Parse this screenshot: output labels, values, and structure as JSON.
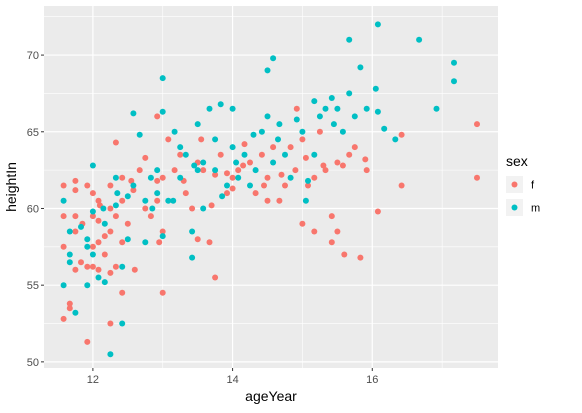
{
  "chart_data": {
    "type": "scatter",
    "title": "",
    "xlabel": "ageYear",
    "ylabel": "heightIn",
    "xlim": [
      11.3,
      17.8
    ],
    "ylim": [
      49.6,
      73.2
    ],
    "xticks": [
      12,
      14,
      16
    ],
    "yticks": [
      50,
      55,
      60,
      65,
      70
    ],
    "grid": true,
    "legend": {
      "title": "sex",
      "placement": "right",
      "entries": [
        {
          "key": "f",
          "label": "f",
          "color": "#F8766D"
        },
        {
          "key": "m",
          "label": "m",
          "color": "#00BFC4"
        }
      ]
    },
    "series": [
      {
        "name": "f",
        "color": "#F8766D",
        "points": [
          [
            11.58,
            61.5
          ],
          [
            11.58,
            59.5
          ],
          [
            11.58,
            57.5
          ],
          [
            11.58,
            52.8
          ],
          [
            11.67,
            53.5
          ],
          [
            11.67,
            53.8
          ],
          [
            11.75,
            61.8
          ],
          [
            11.75,
            61.2
          ],
          [
            11.75,
            59.5
          ],
          [
            11.75,
            58.5
          ],
          [
            11.75,
            56.0
          ],
          [
            11.83,
            56.5
          ],
          [
            11.92,
            61.5
          ],
          [
            11.92,
            56.2
          ],
          [
            11.92,
            51.3
          ],
          [
            12.0,
            61.0
          ],
          [
            12.0,
            59.5
          ],
          [
            12.0,
            57.5
          ],
          [
            12.0,
            56.2
          ],
          [
            12.08,
            60.5
          ],
          [
            12.08,
            59.2
          ],
          [
            12.08,
            57.8
          ],
          [
            12.08,
            56.0
          ],
          [
            12.17,
            58.2
          ],
          [
            12.17,
            57.0
          ],
          [
            12.25,
            61.5
          ],
          [
            12.25,
            60.0
          ],
          [
            12.25,
            58.5
          ],
          [
            12.25,
            55.8
          ],
          [
            12.25,
            52.5
          ],
          [
            12.33,
            64.3
          ],
          [
            12.33,
            59.5
          ],
          [
            12.33,
            56.2
          ],
          [
            12.42,
            62.0
          ],
          [
            12.42,
            60.5
          ],
          [
            12.42,
            57.8
          ],
          [
            12.42,
            54.5
          ],
          [
            12.5,
            59.0
          ],
          [
            12.58,
            61.2
          ],
          [
            12.67,
            62.5
          ],
          [
            12.75,
            63.3
          ],
          [
            12.75,
            60.0
          ],
          [
            12.83,
            59.5
          ],
          [
            12.92,
            66.0
          ],
          [
            12.92,
            61.8
          ],
          [
            12.92,
            60.5
          ],
          [
            13.0,
            62.0
          ],
          [
            13.0,
            58.5
          ],
          [
            13.0,
            54.5
          ],
          [
            13.08,
            64.5
          ],
          [
            13.17,
            62.5
          ],
          [
            13.25,
            63.5
          ],
          [
            13.33,
            61.0
          ],
          [
            13.42,
            60.0
          ],
          [
            13.5,
            63.0
          ],
          [
            13.5,
            58.0
          ],
          [
            13.58,
            62.5
          ],
          [
            13.67,
            57.8
          ],
          [
            13.75,
            55.5
          ],
          [
            13.75,
            62.2
          ],
          [
            13.83,
            63.5
          ],
          [
            13.92,
            62.3
          ],
          [
            13.92,
            61.0
          ],
          [
            14.0,
            62.0
          ],
          [
            14.0,
            61.3
          ],
          [
            14.08,
            62.5
          ],
          [
            14.17,
            64.2
          ],
          [
            14.25,
            63.0
          ],
          [
            14.33,
            61.0
          ],
          [
            14.42,
            63.5
          ],
          [
            14.5,
            62.0
          ],
          [
            14.5,
            60.5
          ],
          [
            14.58,
            64.0
          ],
          [
            14.67,
            60.5
          ],
          [
            14.75,
            61.5
          ],
          [
            14.83,
            64.0
          ],
          [
            14.92,
            66.5
          ],
          [
            15.0,
            64.5
          ],
          [
            15.0,
            59.0
          ],
          [
            15.08,
            61.5
          ],
          [
            15.17,
            62.0
          ],
          [
            15.17,
            58.5
          ],
          [
            15.25,
            65.0
          ],
          [
            15.33,
            62.5
          ],
          [
            15.42,
            59.5
          ],
          [
            15.42,
            57.8
          ],
          [
            15.5,
            63.0
          ],
          [
            15.5,
            58.5
          ],
          [
            15.58,
            62.8
          ],
          [
            15.67,
            63.5
          ],
          [
            15.75,
            64.0
          ],
          [
            15.83,
            56.8
          ],
          [
            15.92,
            62.5
          ],
          [
            16.08,
            59.8
          ],
          [
            16.42,
            64.8
          ],
          [
            16.42,
            61.5
          ],
          [
            17.5,
            65.5
          ],
          [
            17.5,
            62.0
          ],
          [
            12.1,
            60.2
          ],
          [
            12.55,
            61.8
          ],
          [
            13.3,
            61.8
          ],
          [
            14.15,
            62.8
          ],
          [
            14.7,
            62.2
          ],
          [
            15.05,
            63.3
          ],
          [
            15.6,
            57.0
          ],
          [
            15.9,
            63.2
          ],
          [
            12.95,
            57.8
          ],
          [
            13.7,
            60.2
          ],
          [
            14.45,
            61.5
          ],
          [
            15.3,
            62.8
          ],
          [
            11.85,
            59.0
          ],
          [
            12.6,
            56.0
          ],
          [
            13.55,
            64.5
          ],
          [
            14.9,
            62.5
          ]
        ]
      },
      {
        "name": "m",
        "color": "#00BFC4",
        "points": [
          [
            11.58,
            60.5
          ],
          [
            11.58,
            55.0
          ],
          [
            11.67,
            58.5
          ],
          [
            11.67,
            57.0
          ],
          [
            11.67,
            56.5
          ],
          [
            11.75,
            53.2
          ],
          [
            11.83,
            58.8
          ],
          [
            11.92,
            58.0
          ],
          [
            11.92,
            57.5
          ],
          [
            11.92,
            55.0
          ],
          [
            12.0,
            62.8
          ],
          [
            12.0,
            59.8
          ],
          [
            12.0,
            57.0
          ],
          [
            12.08,
            55.5
          ],
          [
            12.17,
            59.0
          ],
          [
            12.17,
            55.2
          ],
          [
            12.25,
            50.5
          ],
          [
            12.33,
            62.0
          ],
          [
            12.33,
            60.2
          ],
          [
            12.42,
            52.5
          ],
          [
            12.42,
            56.2
          ],
          [
            12.5,
            58.0
          ],
          [
            12.5,
            60.8
          ],
          [
            12.58,
            66.2
          ],
          [
            12.58,
            61.5
          ],
          [
            12.67,
            64.8
          ],
          [
            12.75,
            60.5
          ],
          [
            12.75,
            57.8
          ],
          [
            12.83,
            62.0
          ],
          [
            12.92,
            62.5
          ],
          [
            12.92,
            61.0
          ],
          [
            13.0,
            66.3
          ],
          [
            13.0,
            68.5
          ],
          [
            13.0,
            58.2
          ],
          [
            13.08,
            60.5
          ],
          [
            13.17,
            65.0
          ],
          [
            13.25,
            64.0
          ],
          [
            13.25,
            62.0
          ],
          [
            13.33,
            63.5
          ],
          [
            13.42,
            58.5
          ],
          [
            13.42,
            56.8
          ],
          [
            13.5,
            65.5
          ],
          [
            13.5,
            62.5
          ],
          [
            13.58,
            63.0
          ],
          [
            13.58,
            60.0
          ],
          [
            13.67,
            66.5
          ],
          [
            13.75,
            64.5
          ],
          [
            13.75,
            62.5
          ],
          [
            13.83,
            66.8
          ],
          [
            13.92,
            61.5
          ],
          [
            14.0,
            66.5
          ],
          [
            14.0,
            64.0
          ],
          [
            14.08,
            62.0
          ],
          [
            14.17,
            63.5
          ],
          [
            14.25,
            61.5
          ],
          [
            14.33,
            62.5
          ],
          [
            14.42,
            65.0
          ],
          [
            14.5,
            69.0
          ],
          [
            14.5,
            66.0
          ],
          [
            14.58,
            69.8
          ],
          [
            14.58,
            63.0
          ],
          [
            14.67,
            65.5
          ],
          [
            14.75,
            63.5
          ],
          [
            14.83,
            62.0
          ],
          [
            14.92,
            65.8
          ],
          [
            15.0,
            65.0
          ],
          [
            15.08,
            61.8
          ],
          [
            15.17,
            67.0
          ],
          [
            15.17,
            63.5
          ],
          [
            15.25,
            66.0
          ],
          [
            15.33,
            66.5
          ],
          [
            15.42,
            67.2
          ],
          [
            15.5,
            66.5
          ],
          [
            15.58,
            65.0
          ],
          [
            15.67,
            71.0
          ],
          [
            15.67,
            67.5
          ],
          [
            15.75,
            66.0
          ],
          [
            15.83,
            69.2
          ],
          [
            15.92,
            66.5
          ],
          [
            16.08,
            72.0
          ],
          [
            16.08,
            66.3
          ],
          [
            16.17,
            65.2
          ],
          [
            16.33,
            64.5
          ],
          [
            16.67,
            71.0
          ],
          [
            16.92,
            66.5
          ],
          [
            17.17,
            69.5
          ],
          [
            17.17,
            68.3
          ],
          [
            15.05,
            60.5
          ],
          [
            14.3,
            64.8
          ],
          [
            13.85,
            60.8
          ],
          [
            12.15,
            60.0
          ],
          [
            12.85,
            60.0
          ],
          [
            13.45,
            62.8
          ],
          [
            14.65,
            64.5
          ],
          [
            15.45,
            65.5
          ],
          [
            16.05,
            67.8
          ],
          [
            12.35,
            61.0
          ],
          [
            13.15,
            60.5
          ],
          [
            14.05,
            63.0
          ]
        ]
      }
    ]
  }
}
